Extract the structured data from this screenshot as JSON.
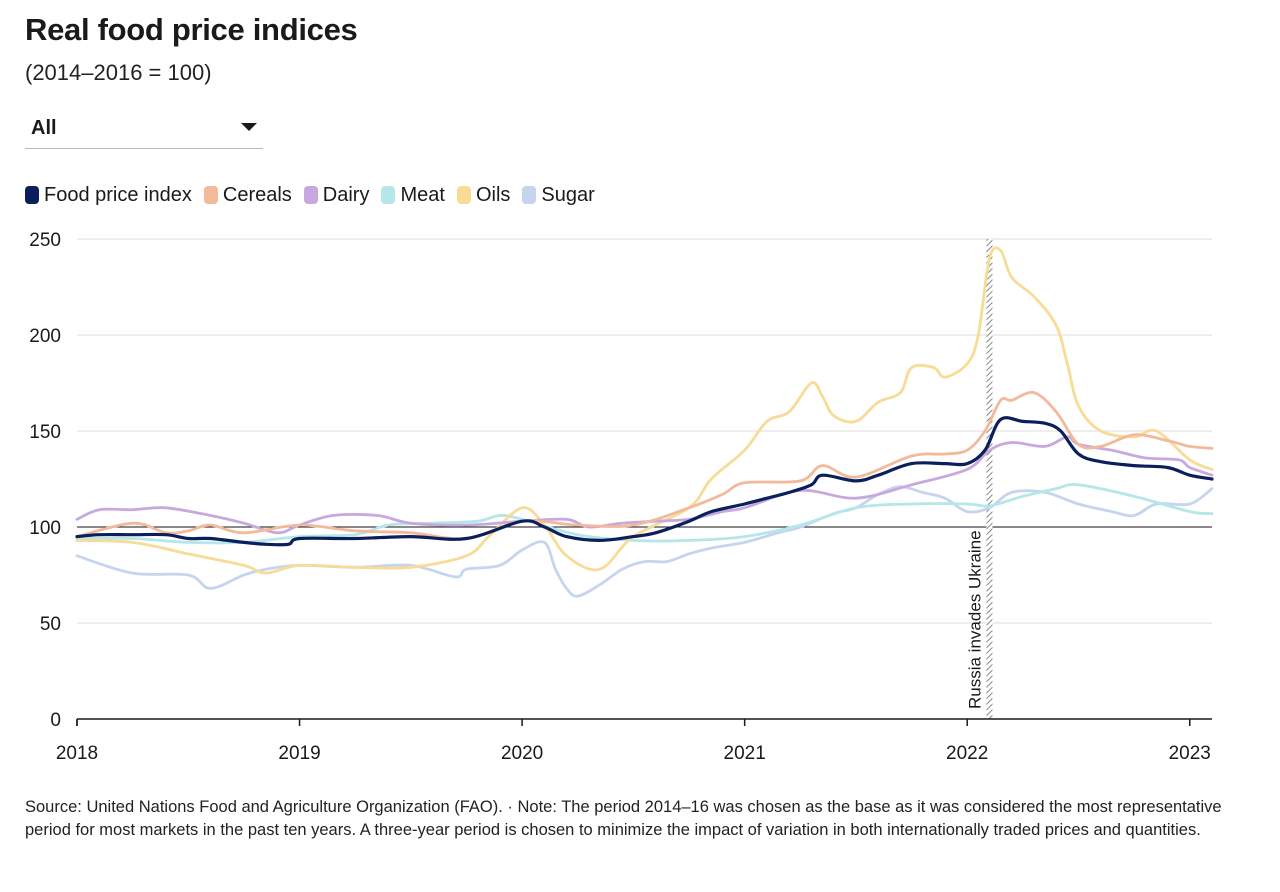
{
  "title": "Real food price indices",
  "subtitle": "(2014–2016 = 100)",
  "dropdown": {
    "selected": "All"
  },
  "legend": [
    {
      "label": "Food price index",
      "color": "#0b1f5c"
    },
    {
      "label": "Cereals",
      "color": "#f3b99b"
    },
    {
      "label": "Dairy",
      "color": "#c8a8de"
    },
    {
      "label": "Meat",
      "color": "#b5e6e8"
    },
    {
      "label": "Oils",
      "color": "#f8db96"
    },
    {
      "label": "Sugar",
      "color": "#c6d5ee"
    }
  ],
  "source": "Source: United Nations Food and Agriculture Organization (FAO). · Note: The period 2014–16 was chosen as the base as it was considered the most representative period for most markets in the past ten years. A three-year period is chosen to minimize the impact of variation in both internationally traded prices and quantities.",
  "chart_data": {
    "type": "line",
    "title": "Real food price indices",
    "subtitle": "(2014–2016 = 100)",
    "xlabel": "",
    "ylabel": "",
    "x_range": [
      2018.0,
      2023.1
    ],
    "ylim": [
      0,
      250
    ],
    "y_ticks": [
      0,
      50,
      100,
      150,
      200,
      250
    ],
    "x_ticks": [
      2018,
      2019,
      2020,
      2021,
      2022,
      2023
    ],
    "x_tick_labels": [
      "2018",
      "2019",
      "2020",
      "2021",
      "2022",
      "2023"
    ],
    "grid": true,
    "baseline": 100,
    "annotation": {
      "label": "Russia invades Ukraine",
      "x": 2022.1
    },
    "series": [
      {
        "name": "Sugar",
        "color": "#c6d5ee",
        "x": [
          2018.0,
          2018.25,
          2018.5,
          2018.6,
          2018.75,
          2018.85,
          2019.0,
          2019.25,
          2019.5,
          2019.7,
          2019.75,
          2019.9,
          2020.0,
          2020.1,
          2020.15,
          2020.2,
          2020.25,
          2020.35,
          2020.45,
          2020.55,
          2020.65,
          2020.75,
          2020.85,
          2021.0,
          2021.15,
          2021.25,
          2021.4,
          2021.5,
          2021.6,
          2021.7,
          2021.8,
          2021.9,
          2022.0,
          2022.1,
          2022.2,
          2022.35,
          2022.5,
          2022.65,
          2022.75,
          2022.85,
          2023.0,
          2023.1
        ],
        "y": [
          85,
          76,
          75,
          68,
          75,
          78,
          80,
          79,
          80,
          74,
          78,
          80,
          88,
          92,
          78,
          68,
          64,
          70,
          78,
          82,
          82,
          86,
          89,
          92,
          97,
          100,
          107,
          110,
          117,
          121,
          118,
          115,
          108,
          110,
          118,
          118,
          112,
          108,
          106,
          112,
          112,
          120
        ]
      },
      {
        "name": "Meat",
        "color": "#b5e6e8",
        "x": [
          2018.0,
          2018.25,
          2018.5,
          2018.75,
          2019.0,
          2019.25,
          2019.4,
          2019.6,
          2019.8,
          2019.9,
          2020.0,
          2020.25,
          2020.5,
          2020.75,
          2021.0,
          2021.25,
          2021.5,
          2021.75,
          2022.0,
          2022.1,
          2022.25,
          2022.4,
          2022.5,
          2022.75,
          2023.0,
          2023.1
        ],
        "y": [
          94,
          94,
          92,
          92,
          95,
          96,
          101,
          102,
          103,
          106,
          104,
          96,
          93,
          93,
          95,
          101,
          110,
          112,
          112,
          111,
          116,
          120,
          122,
          116,
          108,
          107
        ]
      },
      {
        "name": "Oils",
        "color": "#f8db96",
        "x": [
          2018.0,
          2018.25,
          2018.5,
          2018.75,
          2018.85,
          2019.0,
          2019.25,
          2019.5,
          2019.75,
          2019.85,
          2020.0,
          2020.1,
          2020.2,
          2020.35,
          2020.5,
          2020.75,
          2020.85,
          2021.0,
          2021.1,
          2021.2,
          2021.3,
          2021.35,
          2021.4,
          2021.5,
          2021.6,
          2021.7,
          2021.75,
          2021.85,
          2021.9,
          2022.0,
          2022.05,
          2022.1,
          2022.15,
          2022.2,
          2022.3,
          2022.4,
          2022.45,
          2022.5,
          2022.6,
          2022.75,
          2022.85,
          2023.0,
          2023.1
        ],
        "y": [
          93,
          92,
          86,
          80,
          76,
          80,
          79,
          79,
          85,
          95,
          110,
          101,
          85,
          78,
          95,
          110,
          125,
          140,
          155,
          160,
          175,
          168,
          158,
          155,
          165,
          170,
          183,
          183,
          178,
          185,
          200,
          240,
          244,
          230,
          220,
          205,
          185,
          163,
          150,
          147,
          150,
          135,
          130
        ]
      },
      {
        "name": "Dairy",
        "color": "#c8a8de",
        "x": [
          2018.0,
          2018.1,
          2018.25,
          2018.4,
          2018.6,
          2018.75,
          2018.9,
          2019.0,
          2019.15,
          2019.35,
          2019.5,
          2019.75,
          2020.0,
          2020.2,
          2020.3,
          2020.45,
          2020.6,
          2020.75,
          2020.9,
          2021.0,
          2021.25,
          2021.5,
          2021.75,
          2022.0,
          2022.1,
          2022.2,
          2022.35,
          2022.45,
          2022.5,
          2022.65,
          2022.8,
          2022.95,
          2023.0,
          2023.1
        ],
        "y": [
          104,
          109,
          109,
          110,
          106,
          102,
          97,
          101,
          106,
          106,
          102,
          101,
          103,
          104,
          100,
          102,
          103,
          104,
          108,
          110,
          119,
          115,
          122,
          130,
          140,
          144,
          142,
          147,
          143,
          140,
          136,
          135,
          131,
          127
        ]
      },
      {
        "name": "Cereals",
        "color": "#f3b99b",
        "x": [
          2018.0,
          2018.25,
          2018.4,
          2018.5,
          2018.6,
          2018.75,
          2019.0,
          2019.25,
          2019.5,
          2019.75,
          2020.0,
          2020.25,
          2020.5,
          2020.75,
          2020.9,
          2021.0,
          2021.25,
          2021.35,
          2021.5,
          2021.75,
          2021.9,
          2022.0,
          2022.08,
          2022.15,
          2022.2,
          2022.3,
          2022.4,
          2022.5,
          2022.6,
          2022.75,
          2022.9,
          2023.0,
          2023.1
        ],
        "y": [
          95,
          102,
          97,
          98,
          101,
          97,
          101,
          98,
          97,
          94,
          103,
          101,
          101,
          110,
          117,
          123,
          124,
          132,
          126,
          137,
          138,
          140,
          150,
          166,
          166,
          170,
          160,
          143,
          142,
          148,
          145,
          142,
          141
        ]
      },
      {
        "name": "Food price index",
        "color": "#0b1f5c",
        "x": [
          2018.0,
          2018.1,
          2018.25,
          2018.4,
          2018.5,
          2018.6,
          2018.75,
          2018.85,
          2018.95,
          2019.0,
          2019.25,
          2019.5,
          2019.75,
          2020.0,
          2020.1,
          2020.2,
          2020.35,
          2020.5,
          2020.6,
          2020.75,
          2020.85,
          2021.0,
          2021.1,
          2021.2,
          2021.3,
          2021.35,
          2021.5,
          2021.6,
          2021.75,
          2021.9,
          2022.0,
          2022.08,
          2022.15,
          2022.25,
          2022.35,
          2022.42,
          2022.5,
          2022.6,
          2022.75,
          2022.9,
          2023.0,
          2023.1
        ],
        "y": [
          95,
          96,
          96,
          96,
          94,
          94,
          92,
          91,
          91,
          94,
          94,
          95,
          94,
          103,
          100,
          95,
          93,
          95,
          97,
          103,
          108,
          112,
          115,
          118,
          122,
          127,
          124,
          127,
          133,
          133,
          133,
          140,
          156,
          155,
          154,
          150,
          138,
          134,
          132,
          131,
          127,
          125
        ]
      }
    ]
  }
}
